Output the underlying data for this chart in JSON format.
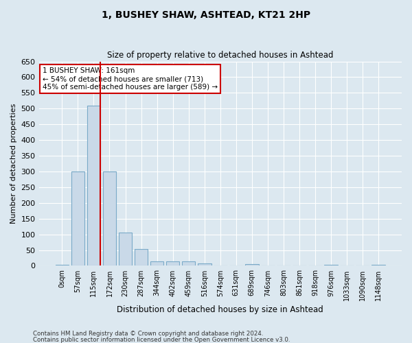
{
  "title": "1, BUSHEY SHAW, ASHTEAD, KT21 2HP",
  "subtitle": "Size of property relative to detached houses in Ashtead",
  "xlabel": "Distribution of detached houses by size in Ashtead",
  "ylabel": "Number of detached properties",
  "footnote1": "Contains HM Land Registry data © Crown copyright and database right 2024.",
  "footnote2": "Contains public sector information licensed under the Open Government Licence v3.0.",
  "bar_labels": [
    "0sqm",
    "57sqm",
    "115sqm",
    "172sqm",
    "230sqm",
    "287sqm",
    "344sqm",
    "402sqm",
    "459sqm",
    "516sqm",
    "574sqm",
    "631sqm",
    "689sqm",
    "746sqm",
    "803sqm",
    "861sqm",
    "918sqm",
    "976sqm",
    "1033sqm",
    "1090sqm",
    "1148sqm"
  ],
  "bar_values": [
    3,
    300,
    510,
    300,
    105,
    53,
    13,
    13,
    13,
    8,
    0,
    0,
    5,
    0,
    0,
    0,
    0,
    3,
    0,
    0,
    3
  ],
  "bar_color": "#c9d9e8",
  "bar_edge_color": "#7aaac8",
  "ylim": [
    0,
    650
  ],
  "yticks": [
    0,
    50,
    100,
    150,
    200,
    250,
    300,
    350,
    400,
    450,
    500,
    550,
    600,
    650
  ],
  "property_bin_index": 2,
  "annotation_line1": "1 BUSHEY SHAW: 161sqm",
  "annotation_line2": "← 54% of detached houses are smaller (713)",
  "annotation_line3": "45% of semi-detached houses are larger (589) →",
  "annotation_box_color": "#cc0000",
  "red_line_color": "#cc0000",
  "background_color": "#dce8f0",
  "plot_bg_color": "#dce8f0",
  "grid_color": "#ffffff"
}
